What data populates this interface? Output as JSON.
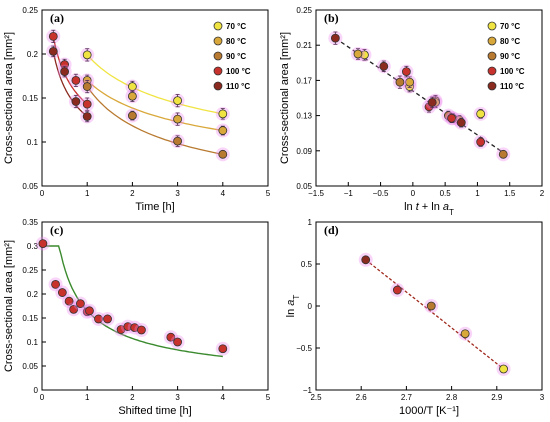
{
  "colors": {
    "T70": "#f0e442",
    "T80": "#d9a83a",
    "T90": "#b87a30",
    "T100": "#c8322c",
    "T110": "#8b2a1e",
    "fitGreen": "#3b8a2e",
    "fitDark": "#222222",
    "fitRed": "#a02a1e",
    "glow": "#ee88ee"
  },
  "chart_data": [
    {
      "panel": "(a)",
      "type": "scatter",
      "xlabel": "Time [h]",
      "ylabel": "Cross-sectional area [mm²]",
      "xlim": [
        0,
        5
      ],
      "ylim": [
        0.05,
        0.25
      ],
      "xticks": [
        "0",
        "1",
        "2",
        "3",
        "4",
        "5"
      ],
      "yticks": [
        "0.05",
        "0.1",
        "0.15",
        "0.2",
        "0.25"
      ],
      "legend": {
        "placement": "top-right",
        "entries": [
          "70 °C",
          "80 °C",
          "90 °C",
          "100 °C",
          "110 °C"
        ]
      },
      "series": [
        {
          "name": "70 °C",
          "colorKey": "T70",
          "x": [
            1,
            2,
            3,
            4
          ],
          "y": [
            0.199,
            0.163,
            0.147,
            0.132
          ],
          "err": [
            0.007,
            0.006,
            0.007,
            0.006
          ]
        },
        {
          "name": "80 °C",
          "colorKey": "T80",
          "x": [
            1,
            2,
            3,
            4
          ],
          "y": [
            0.17,
            0.152,
            0.126,
            0.113
          ],
          "err": [
            0.006,
            0.006,
            0.007,
            0.005
          ]
        },
        {
          "name": "90 °C",
          "colorKey": "T90",
          "x": [
            1,
            2,
            3,
            4
          ],
          "y": [
            0.163,
            0.13,
            0.101,
            0.086
          ],
          "err": [
            0.007,
            0.005,
            0.006,
            0.004
          ]
        },
        {
          "name": "100 °C",
          "colorKey": "T100",
          "x": [
            0.25,
            0.5,
            0.75,
            1
          ],
          "y": [
            0.22,
            0.188,
            0.17,
            0.143
          ],
          "err": [
            0.007,
            0.006,
            0.007,
            0.007
          ]
        },
        {
          "name": "110 °C",
          "colorKey": "T110",
          "x": [
            0.25,
            0.5,
            0.75,
            1
          ],
          "y": [
            0.203,
            0.18,
            0.146,
            0.129
          ],
          "err": [
            0.006,
            0.006,
            0.007,
            0.006
          ]
        }
      ]
    },
    {
      "panel": "(b)",
      "type": "scatter",
      "xlabel": "ln t + ln a_T",
      "ylabel": "Cross-sectional area [mm²]",
      "xlim": [
        -1.5,
        2
      ],
      "ylim": [
        0.05,
        0.25
      ],
      "xticks": [
        "−1.5",
        "−1",
        "−0.5",
        "0",
        "0.5",
        "1",
        "1.5",
        "2"
      ],
      "yticks": [
        "0.05",
        "0.09",
        "0.13",
        "0.17",
        "0.21",
        "0.25"
      ],
      "legend": {
        "placement": "top-right",
        "entries": [
          "70 °C",
          "80 °C",
          "90 °C",
          "100 °C",
          "110 °C"
        ]
      },
      "series": [
        {
          "name": "70 °C",
          "colorKey": "T70",
          "x": [
            -0.75,
            -0.05,
            0.35,
            1.05
          ],
          "y": [
            0.199,
            0.163,
            0.147,
            0.132
          ],
          "err": [
            0.006,
            0.006,
            0.006,
            0.005
          ]
        },
        {
          "name": "80 °C",
          "colorKey": "T80",
          "x": [
            -0.85,
            -0.05,
            0.35,
            0.72
          ],
          "y": [
            0.2,
            0.168,
            0.145,
            0.125
          ],
          "err": [
            0.006,
            0.006,
            0.006,
            0.005
          ]
        },
        {
          "name": "90 °C",
          "colorKey": "T90",
          "x": [
            -0.2,
            0.55,
            0.62,
            1.4
          ],
          "y": [
            0.168,
            0.13,
            0.127,
            0.086
          ],
          "err": [
            0.007,
            0.005,
            0.005,
            0.004
          ]
        },
        {
          "name": "100 °C",
          "colorKey": "T100",
          "x": [
            -0.1,
            0.25,
            0.6,
            1.05
          ],
          "y": [
            0.18,
            0.14,
            0.127,
            0.1
          ],
          "err": [
            0.006,
            0.006,
            0.005,
            0.005
          ]
        },
        {
          "name": "110 °C",
          "colorKey": "T110",
          "x": [
            -1.2,
            -0.45,
            0.3,
            0.75
          ],
          "y": [
            0.218,
            0.186,
            0.145,
            0.122
          ],
          "err": [
            0.007,
            0.006,
            0.006,
            0.005
          ]
        }
      ],
      "fit": {
        "style": "dashed",
        "x": [
          -1.2,
          1.4
        ],
        "y": [
          0.218,
          0.088
        ]
      }
    },
    {
      "panel": "(c)",
      "type": "scatter",
      "xlabel": "Shifted time [h]",
      "ylabel": "Cross-sectional area [mm²]",
      "xlim": [
        0,
        5
      ],
      "ylim": [
        0,
        0.35
      ],
      "xticks": [
        "0",
        "1",
        "2",
        "3",
        "4",
        "5"
      ],
      "yticks": [
        "0",
        "0.05",
        "0.1",
        "0.15",
        "0.2",
        "0.25",
        "0.3",
        "0.35"
      ],
      "points": {
        "x": [
          0.02,
          0.3,
          0.45,
          0.6,
          0.7,
          0.85,
          1.0,
          1.05,
          1.25,
          1.45,
          1.75,
          1.9,
          2.05,
          2.2,
          2.85,
          3.0,
          4.0
        ],
        "y": [
          0.305,
          0.22,
          0.203,
          0.185,
          0.168,
          0.18,
          0.163,
          0.165,
          0.148,
          0.148,
          0.126,
          0.132,
          0.13,
          0.125,
          0.11,
          0.1,
          0.086
        ]
      },
      "fit": {
        "model": "a*x^-b",
        "a": 0.165,
        "b": 0.62,
        "xRange": [
          0.02,
          4.0
        ]
      }
    },
    {
      "panel": "(d)",
      "type": "scatter",
      "xlabel": "1000/T [K⁻¹]",
      "ylabel": "ln a_T",
      "xlim": [
        2.5,
        3
      ],
      "ylim": [
        -1,
        1
      ],
      "xticks": [
        "2.5",
        "2.6",
        "2.7",
        "2.8",
        "2.9",
        "3"
      ],
      "yticks": [
        "−1",
        "−0.5",
        "0",
        "0.5",
        "1"
      ],
      "series": [
        {
          "name": "110 °C",
          "colorKey": "T110",
          "x": [
            2.61
          ],
          "y": [
            0.55
          ]
        },
        {
          "name": "100 °C",
          "colorKey": "T100",
          "x": [
            2.68
          ],
          "y": [
            0.19
          ]
        },
        {
          "name": "90 °C",
          "colorKey": "T90",
          "x": [
            2.755
          ],
          "y": [
            0.0
          ]
        },
        {
          "name": "80 °C",
          "colorKey": "T80",
          "x": [
            2.83
          ],
          "y": [
            -0.33
          ]
        },
        {
          "name": "70 °C",
          "colorKey": "T70",
          "x": [
            2.915
          ],
          "y": [
            -0.75
          ]
        }
      ],
      "fit": {
        "style": "dashed",
        "x": [
          2.61,
          2.915
        ],
        "y": [
          0.55,
          -0.75
        ]
      }
    }
  ]
}
